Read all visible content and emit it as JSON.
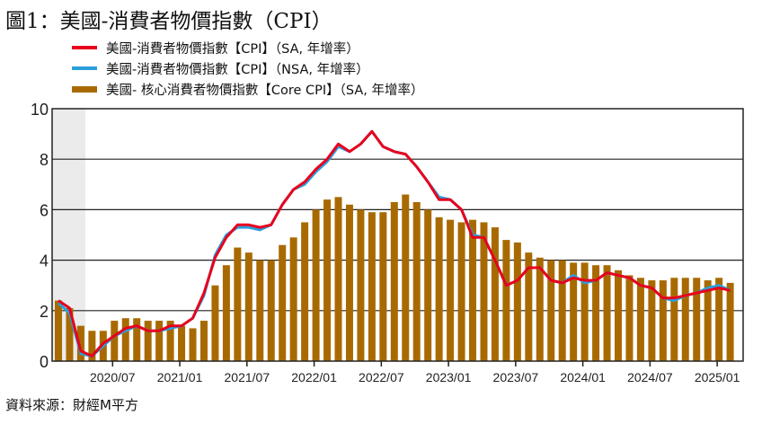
{
  "title": "圖1：美國-消費者物價指數（CPI）",
  "source": "資料來源：財經M平方",
  "colors": {
    "cpi_sa": "#e8001c",
    "cpi_nsa": "#2a9fdc",
    "core": "#a86a00",
    "shade": "#ebebeb"
  },
  "chart_data": {
    "type": "bar+line",
    "title": "圖1：美國-消費者物價指數（CPI）",
    "xlabel": "",
    "ylabel": "",
    "ylim": [
      0,
      10
    ],
    "yticks": [
      "0",
      "2",
      "4",
      "6",
      "8",
      "10"
    ],
    "grid": true,
    "legend_position": "top-left",
    "start_month": "2020/02",
    "xtick_labels": [
      "2020/07",
      "2021/01",
      "2021/07",
      "2022/01",
      "2022/07",
      "2023/01",
      "2023/07",
      "2024/01",
      "2024/07",
      "2025/01"
    ],
    "shaded_period": [
      "2020/02",
      "2020/04"
    ],
    "series": [
      {
        "name": "美國-消費者物價指數【CPI】（SA, 年增率）",
        "kind": "line",
        "color": "#e8001c",
        "values": [
          2.4,
          2.1,
          0.4,
          0.2,
          0.7,
          1.0,
          1.3,
          1.4,
          1.2,
          1.2,
          1.4,
          1.4,
          1.7,
          2.7,
          4.1,
          4.9,
          5.4,
          5.4,
          5.3,
          5.4,
          6.2,
          6.8,
          7.1,
          7.6,
          8.0,
          8.6,
          8.3,
          8.6,
          9.1,
          8.5,
          8.3,
          8.2,
          7.7,
          7.1,
          6.4,
          6.4,
          6.0,
          4.9,
          4.9,
          4.0,
          3.0,
          3.2,
          3.7,
          3.7,
          3.2,
          3.1,
          3.3,
          3.2,
          3.2,
          3.5,
          3.4,
          3.3,
          3.0,
          2.9,
          2.5,
          2.5,
          2.6,
          2.7,
          2.8,
          2.9,
          2.8
        ]
      },
      {
        "name": "美國-消費者物價指數【CPI】（NSA, 年增率）",
        "kind": "line",
        "color": "#2a9fdc",
        "values": [
          2.3,
          1.9,
          0.3,
          0.2,
          0.6,
          1.0,
          1.2,
          1.4,
          1.2,
          1.2,
          1.3,
          1.4,
          1.7,
          2.6,
          4.2,
          5.0,
          5.3,
          5.3,
          5.2,
          5.4,
          6.2,
          6.8,
          7.0,
          7.5,
          7.9,
          8.5,
          8.3,
          8.6,
          9.1,
          8.5,
          8.3,
          8.2,
          7.7,
          7.1,
          6.5,
          6.4,
          6.0,
          5.0,
          4.9,
          4.0,
          3.0,
          3.2,
          3.7,
          3.7,
          3.2,
          3.1,
          3.4,
          3.1,
          3.2,
          3.5,
          3.4,
          3.3,
          3.0,
          2.9,
          2.5,
          2.4,
          2.6,
          2.7,
          2.9,
          3.0,
          2.8
        ]
      },
      {
        "name": "美國- 核心消費者物價指數【Core CPI】（SA, 年增率）",
        "kind": "bar",
        "color": "#a86a00",
        "values": [
          2.4,
          2.1,
          1.4,
          1.2,
          1.2,
          1.6,
          1.7,
          1.7,
          1.6,
          1.6,
          1.6,
          1.4,
          1.3,
          1.6,
          3.0,
          3.8,
          4.5,
          4.3,
          4.0,
          4.0,
          4.6,
          4.9,
          5.5,
          6.0,
          6.4,
          6.5,
          6.2,
          6.0,
          5.9,
          5.9,
          6.3,
          6.6,
          6.3,
          6.0,
          5.7,
          5.6,
          5.5,
          5.6,
          5.5,
          5.3,
          4.8,
          4.7,
          4.3,
          4.1,
          4.0,
          4.0,
          3.9,
          3.9,
          3.8,
          3.8,
          3.6,
          3.4,
          3.3,
          3.2,
          3.2,
          3.3,
          3.3,
          3.3,
          3.2,
          3.3,
          3.1
        ]
      }
    ]
  }
}
